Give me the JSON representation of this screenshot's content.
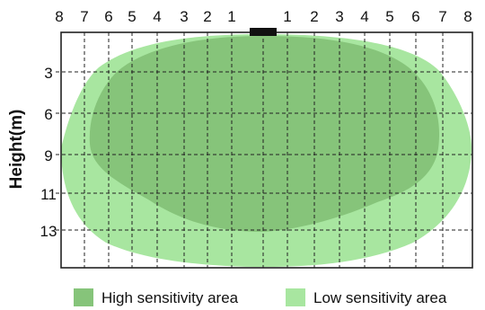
{
  "diagram": {
    "y_axis_title": "Height(m)",
    "top_ticks": [
      "8",
      "7",
      "6",
      "5",
      "4",
      "3",
      "2",
      "1",
      "1",
      "2",
      "3",
      "4",
      "5",
      "6",
      "7",
      "8"
    ],
    "left_ticks": [
      "3",
      "6",
      "9",
      "11",
      "13"
    ],
    "legend": [
      {
        "label": "High sensitivity area",
        "color": "#86c47a"
      },
      {
        "label": "Low sensitivity area",
        "color": "#a8e6a0"
      }
    ],
    "colors": {
      "high": "#86c47a",
      "low": "#a8e6a0",
      "sensor": "#111111",
      "grid": "#222222"
    }
  }
}
